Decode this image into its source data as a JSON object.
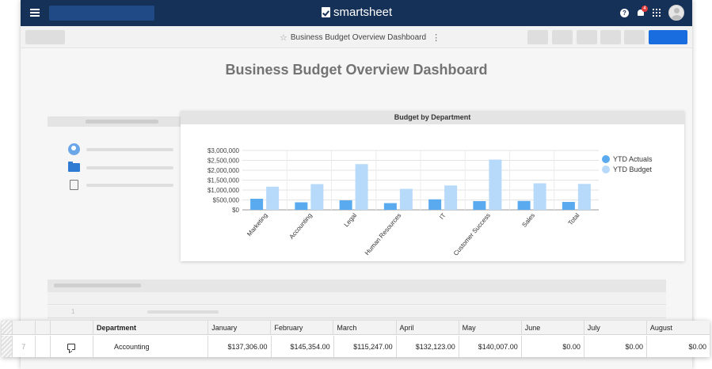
{
  "app": {
    "brand": "smartsheet",
    "notification_count": "4"
  },
  "toolbar": {
    "doc_title": "Business Budget Overview Dashboard"
  },
  "dashboard": {
    "title": "Business Budget Overview Dashboard"
  },
  "colors": {
    "topbar": "#163157",
    "accent_button": "#1a6dde",
    "ytd_actuals": "#5aaaf0",
    "ytd_budget": "#b7dafa"
  },
  "icons": [
    "menu-icon",
    "help-icon",
    "bell-icon",
    "apps-grid-icon",
    "avatar",
    "star-icon",
    "kebab-icon",
    "people-icon",
    "folder-icon",
    "sheet-icon",
    "comment-icon"
  ],
  "chart_data": {
    "type": "bar",
    "title": "Budget by Department",
    "categories": [
      "Marketing",
      "Accounting",
      "Legal",
      "Human Resources",
      "IT",
      "Customer Success",
      "Sales",
      "Total"
    ],
    "series": [
      {
        "name": "YTD Actuals",
        "color": "#5aaaf0",
        "values": [
          560000,
          380000,
          480000,
          340000,
          530000,
          440000,
          450000,
          400000
        ]
      },
      {
        "name": "YTD Budget",
        "color": "#b7dafa",
        "values": [
          1170000,
          1300000,
          2310000,
          1060000,
          1230000,
          2540000,
          1340000,
          1310000
        ]
      }
    ],
    "yticks": [
      "$3,000,000",
      "$2,500,000",
      "$2,000,000",
      "$1,500,000",
      "$1,000,000",
      "$500,000",
      "$0"
    ],
    "ylim": [
      0,
      3000000
    ],
    "grid": true,
    "legend": "right"
  },
  "grid": {
    "columns": [
      "Department",
      "January",
      "February",
      "March",
      "April",
      "May",
      "June",
      "July",
      "August"
    ],
    "row": {
      "number": "7",
      "department": "Accounting",
      "values": [
        "$137,306.00",
        "$145,354.00",
        "$115,247.00",
        "$132,123.00",
        "$140,007.00",
        "$0.00",
        "$0.00",
        "$0.00"
      ]
    },
    "background_row_number": "1"
  }
}
